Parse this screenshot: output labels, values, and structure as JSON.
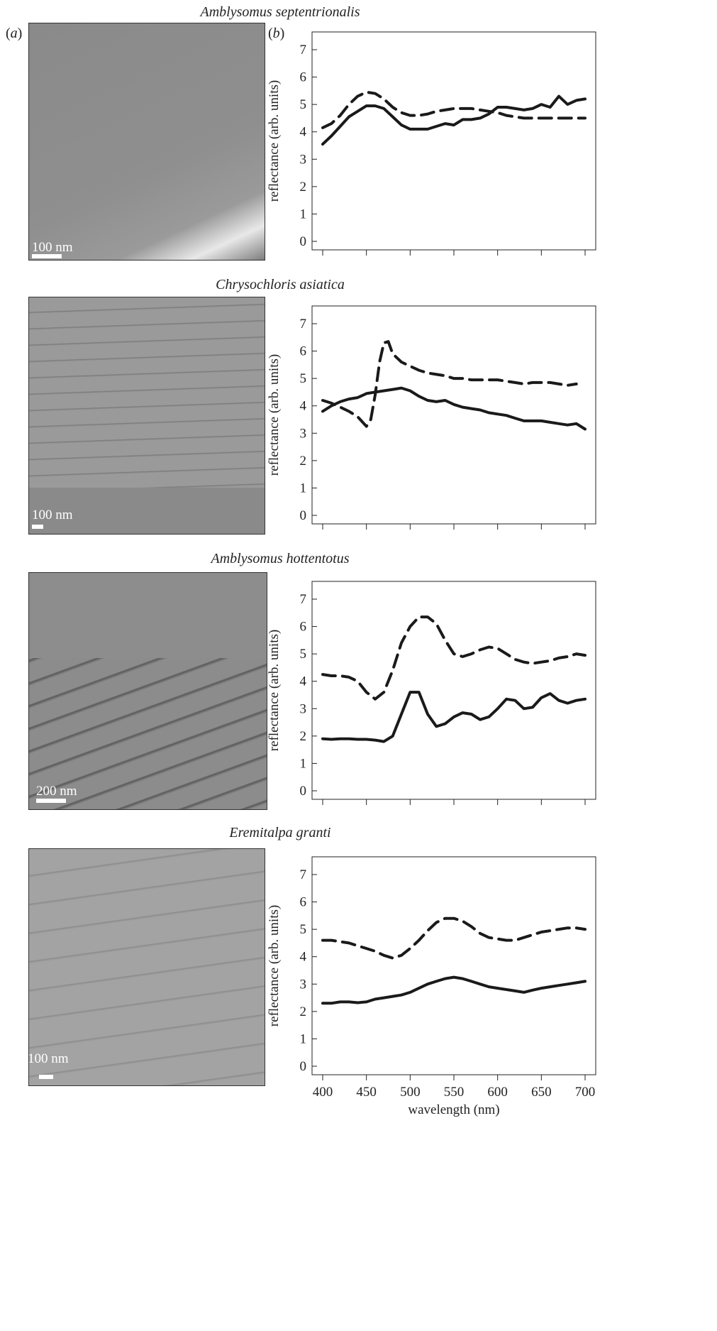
{
  "panel_labels": [
    "a",
    "b"
  ],
  "chart_data": [
    {
      "type": "line",
      "species": "Amblysomus septentrionalis",
      "scale_label": "100 nm",
      "ylabel": "reflectance (arb. units)",
      "xlabel": "",
      "xlim": [
        400,
        700
      ],
      "ylim": [
        0,
        7
      ],
      "xticks": [
        400,
        450,
        500,
        550,
        600,
        650,
        700
      ],
      "show_xtick_labels": false,
      "yticks": [
        0,
        1,
        2,
        3,
        4,
        5,
        6,
        7
      ],
      "series": [
        {
          "style": "solid",
          "x": [
            400,
            410,
            420,
            430,
            440,
            450,
            460,
            470,
            480,
            490,
            500,
            510,
            520,
            530,
            540,
            550,
            560,
            570,
            580,
            590,
            600,
            610,
            620,
            630,
            640,
            650,
            660,
            670,
            680,
            690,
            700
          ],
          "y": [
            3.55,
            3.85,
            4.2,
            4.55,
            4.75,
            4.95,
            4.95,
            4.85,
            4.55,
            4.25,
            4.1,
            4.1,
            4.1,
            4.2,
            4.3,
            4.25,
            4.45,
            4.45,
            4.5,
            4.65,
            4.9,
            4.9,
            4.85,
            4.8,
            4.85,
            5.0,
            4.9,
            5.3,
            5.0,
            5.15,
            5.2
          ]
        },
        {
          "style": "dashed",
          "x": [
            400,
            410,
            420,
            430,
            440,
            450,
            460,
            470,
            480,
            490,
            500,
            510,
            520,
            530,
            540,
            550,
            560,
            570,
            580,
            590,
            600,
            610,
            620,
            630,
            640,
            650,
            660,
            670,
            680,
            690,
            700
          ],
          "y": [
            4.15,
            4.3,
            4.6,
            5.0,
            5.3,
            5.45,
            5.4,
            5.2,
            4.9,
            4.7,
            4.6,
            4.6,
            4.65,
            4.75,
            4.8,
            4.85,
            4.85,
            4.85,
            4.8,
            4.75,
            4.7,
            4.6,
            4.55,
            4.5,
            4.5,
            4.5,
            4.5,
            4.5,
            4.5,
            4.5,
            4.5
          ]
        }
      ]
    },
    {
      "type": "line",
      "species": "Chrysochloris asiatica",
      "scale_label": "100 nm",
      "ylabel": "reflectance (arb. units)",
      "xlabel": "",
      "xlim": [
        400,
        700
      ],
      "ylim": [
        0,
        7
      ],
      "xticks": [
        400,
        450,
        500,
        550,
        600,
        650,
        700
      ],
      "show_xtick_labels": false,
      "yticks": [
        0,
        1,
        2,
        3,
        4,
        5,
        6,
        7
      ],
      "series": [
        {
          "style": "solid",
          "x": [
            400,
            410,
            420,
            430,
            440,
            450,
            460,
            470,
            480,
            490,
            500,
            510,
            520,
            530,
            540,
            550,
            560,
            570,
            580,
            590,
            600,
            610,
            620,
            630,
            640,
            650,
            660,
            670,
            680,
            690,
            700
          ],
          "y": [
            3.8,
            4.0,
            4.15,
            4.25,
            4.3,
            4.45,
            4.5,
            4.55,
            4.6,
            4.65,
            4.55,
            4.35,
            4.2,
            4.15,
            4.2,
            4.05,
            3.95,
            3.9,
            3.85,
            3.75,
            3.7,
            3.65,
            3.55,
            3.45,
            3.45,
            3.45,
            3.4,
            3.35,
            3.3,
            3.35,
            3.15
          ]
        },
        {
          "style": "dashed",
          "x": [
            400,
            410,
            420,
            430,
            440,
            450,
            455,
            460,
            465,
            470,
            475,
            480,
            490,
            500,
            510,
            520,
            530,
            540,
            550,
            560,
            570,
            580,
            590,
            600,
            610,
            620,
            630,
            640,
            650,
            660,
            670,
            680,
            690
          ],
          "y": [
            4.2,
            4.1,
            3.95,
            3.8,
            3.6,
            3.25,
            3.5,
            4.4,
            5.6,
            6.3,
            6.35,
            5.9,
            5.6,
            5.45,
            5.3,
            5.2,
            5.15,
            5.1,
            5.0,
            5.0,
            4.95,
            4.95,
            4.95,
            4.95,
            4.9,
            4.85,
            4.8,
            4.85,
            4.85,
            4.85,
            4.8,
            4.75,
            4.8
          ]
        }
      ]
    },
    {
      "type": "line",
      "species": "Amblysomus hottentotus",
      "scale_label": "200 nm",
      "ylabel": "reflectance (arb. units)",
      "xlabel": "",
      "xlim": [
        400,
        700
      ],
      "ylim": [
        0,
        7
      ],
      "xticks": [
        400,
        450,
        500,
        550,
        600,
        650,
        700
      ],
      "show_xtick_labels": false,
      "yticks": [
        0,
        1,
        2,
        3,
        4,
        5,
        6,
        7
      ],
      "series": [
        {
          "style": "solid",
          "x": [
            400,
            410,
            420,
            430,
            440,
            450,
            460,
            470,
            480,
            490,
            500,
            510,
            520,
            530,
            540,
            550,
            560,
            570,
            580,
            590,
            600,
            610,
            620,
            630,
            640,
            650,
            660,
            670,
            680,
            690,
            700
          ],
          "y": [
            1.9,
            1.88,
            1.9,
            1.9,
            1.88,
            1.88,
            1.85,
            1.8,
            2.0,
            2.8,
            3.6,
            3.6,
            2.8,
            2.35,
            2.45,
            2.7,
            2.85,
            2.8,
            2.6,
            2.7,
            3.0,
            3.35,
            3.3,
            3.0,
            3.05,
            3.4,
            3.55,
            3.3,
            3.2,
            3.3,
            3.35
          ]
        },
        {
          "style": "dashed",
          "x": [
            400,
            410,
            420,
            430,
            440,
            450,
            460,
            470,
            480,
            490,
            500,
            510,
            520,
            530,
            540,
            550,
            560,
            570,
            580,
            590,
            600,
            610,
            620,
            630,
            640,
            650,
            660,
            670,
            680,
            690,
            700
          ],
          "y": [
            4.25,
            4.2,
            4.2,
            4.15,
            4.0,
            3.6,
            3.35,
            3.6,
            4.4,
            5.4,
            6.0,
            6.35,
            6.35,
            6.1,
            5.5,
            5.0,
            4.9,
            5.0,
            5.15,
            5.25,
            5.2,
            5.0,
            4.8,
            4.7,
            4.65,
            4.7,
            4.75,
            4.85,
            4.9,
            5.0,
            4.95
          ]
        }
      ]
    },
    {
      "type": "line",
      "species": "Eremitalpa granti",
      "scale_label": "100 nm",
      "ylabel": "reflectance (arb. units)",
      "xlabel": "wavelength (nm)",
      "xlim": [
        400,
        700
      ],
      "ylim": [
        0,
        7
      ],
      "xticks": [
        400,
        450,
        500,
        550,
        600,
        650,
        700
      ],
      "show_xtick_labels": true,
      "yticks": [
        0,
        1,
        2,
        3,
        4,
        5,
        6,
        7
      ],
      "series": [
        {
          "style": "solid",
          "x": [
            400,
            410,
            420,
            430,
            440,
            450,
            460,
            470,
            480,
            490,
            500,
            510,
            520,
            530,
            540,
            550,
            560,
            570,
            580,
            590,
            600,
            610,
            620,
            630,
            640,
            650,
            660,
            670,
            680,
            690,
            700
          ],
          "y": [
            2.3,
            2.3,
            2.35,
            2.35,
            2.32,
            2.35,
            2.45,
            2.5,
            2.55,
            2.6,
            2.7,
            2.85,
            3.0,
            3.1,
            3.2,
            3.25,
            3.2,
            3.1,
            3.0,
            2.9,
            2.85,
            2.8,
            2.75,
            2.7,
            2.78,
            2.85,
            2.9,
            2.95,
            3.0,
            3.05,
            3.1
          ]
        },
        {
          "style": "dashed",
          "x": [
            400,
            410,
            420,
            430,
            440,
            450,
            460,
            470,
            480,
            490,
            500,
            510,
            520,
            530,
            540,
            550,
            560,
            570,
            580,
            590,
            600,
            610,
            620,
            630,
            640,
            650,
            660,
            670,
            680,
            690,
            700
          ],
          "y": [
            4.6,
            4.6,
            4.55,
            4.5,
            4.4,
            4.3,
            4.2,
            4.05,
            3.95,
            4.05,
            4.3,
            4.6,
            4.95,
            5.25,
            5.4,
            5.4,
            5.3,
            5.1,
            4.85,
            4.7,
            4.65,
            4.6,
            4.6,
            4.7,
            4.8,
            4.9,
            4.95,
            5.0,
            5.05,
            5.05,
            5.0
          ]
        }
      ]
    }
  ]
}
